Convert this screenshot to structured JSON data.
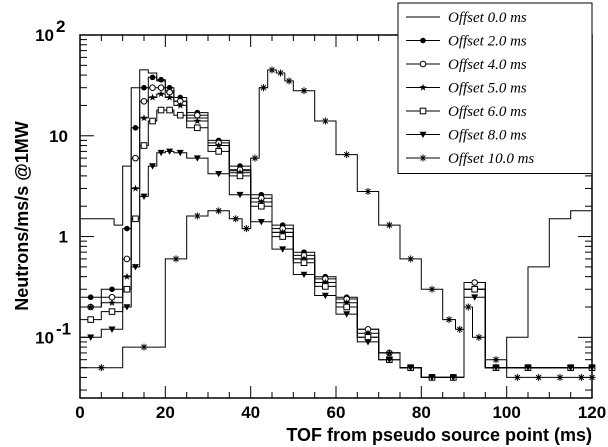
{
  "chart_data": {
    "type": "line",
    "xlabel": "TOF from pseudo source point (ms)",
    "ylabel": "Neutrons/ms/s @1MW",
    "xlim": [
      0,
      120
    ],
    "ylim": [
      0.025,
      100
    ],
    "yscale": "log",
    "x_ticks": [
      {
        "value": 0,
        "label": "0"
      },
      {
        "value": 20,
        "label": "20"
      },
      {
        "value": 40,
        "label": "40"
      },
      {
        "value": 60,
        "label": "60"
      },
      {
        "value": 80,
        "label": "80"
      },
      {
        "value": 100,
        "label": "100"
      },
      {
        "value": 120,
        "label": "120"
      }
    ],
    "y_ticks": [
      {
        "value": 0.1,
        "base": "10",
        "exp": "-1"
      },
      {
        "value": 1,
        "label": "1"
      },
      {
        "value": 10,
        "label": "10"
      },
      {
        "value": 100,
        "base": "10",
        "exp": "2"
      }
    ],
    "legend_position": "top-right",
    "series": [
      {
        "name": "Offset  0.0 ms",
        "marker": "none",
        "x": [
          0,
          8,
          10,
          12,
          14,
          16,
          18,
          20,
          22,
          25,
          30,
          35,
          40,
          45,
          50,
          55,
          60,
          65,
          70,
          75,
          80,
          85,
          90,
          95,
          100,
          105,
          110,
          115,
          120
        ],
        "y": [
          1.5,
          1.3,
          5,
          30,
          45,
          42,
          35,
          28,
          22,
          15,
          8,
          4.5,
          2.2,
          1.1,
          0.6,
          0.35,
          0.2,
          0.1,
          0.07,
          0.05,
          0.04,
          0.04,
          0.3,
          0.05,
          0.1,
          0.5,
          1.5,
          1.8,
          1.6
        ]
      },
      {
        "name": "Offset  2.0 ms",
        "marker": "dot",
        "x": [
          0,
          5,
          10,
          12,
          14,
          16,
          18,
          20,
          22,
          25,
          30,
          35,
          40,
          45,
          50,
          55,
          60,
          65,
          70,
          75,
          80,
          85,
          90,
          95,
          100,
          110,
          120
        ],
        "y": [
          0.25,
          0.3,
          1.2,
          12,
          30,
          38,
          36,
          30,
          24,
          17,
          9,
          5,
          2.6,
          1.3,
          0.7,
          0.4,
          0.25,
          0.12,
          0.07,
          0.05,
          0.04,
          0.04,
          0.35,
          0.05,
          0.05,
          0.05,
          0.05
        ]
      },
      {
        "name": "Offset  4.0 ms",
        "marker": "circle",
        "x": [
          0,
          5,
          10,
          12,
          14,
          16,
          18,
          20,
          22,
          25,
          30,
          35,
          40,
          45,
          50,
          55,
          60,
          65,
          70,
          75,
          80,
          85,
          90,
          95,
          100,
          110,
          120
        ],
        "y": [
          0.2,
          0.25,
          0.6,
          6,
          22,
          30,
          30,
          27,
          22,
          16,
          8.5,
          4.6,
          2.4,
          1.2,
          0.65,
          0.38,
          0.24,
          0.12,
          0.07,
          0.05,
          0.04,
          0.04,
          0.35,
          0.05,
          0.05,
          0.05,
          0.05
        ]
      },
      {
        "name": "Offset  5.0 ms",
        "marker": "star",
        "x": [
          0,
          5,
          10,
          12,
          14,
          16,
          18,
          20,
          22,
          25,
          30,
          35,
          40,
          45,
          50,
          55,
          60,
          65,
          70,
          75,
          80,
          85,
          90,
          95,
          100,
          110,
          120
        ],
        "y": [
          0.2,
          0.22,
          0.4,
          3,
          15,
          24,
          26,
          24,
          20,
          14,
          8,
          4.3,
          2.2,
          1.1,
          0.6,
          0.35,
          0.22,
          0.11,
          0.07,
          0.05,
          0.04,
          0.04,
          0.3,
          0.05,
          0.05,
          0.05,
          0.05
        ]
      },
      {
        "name": "Offset  6.0 ms",
        "marker": "square",
        "x": [
          0,
          5,
          10,
          12,
          14,
          16,
          18,
          20,
          22,
          25,
          30,
          35,
          40,
          45,
          50,
          55,
          60,
          65,
          70,
          75,
          80,
          85,
          90,
          95,
          100,
          110,
          120
        ],
        "y": [
          0.15,
          0.18,
          0.3,
          1.5,
          8,
          14,
          18,
          18,
          16,
          12,
          7,
          4,
          2,
          1,
          0.55,
          0.32,
          0.2,
          0.1,
          0.06,
          0.05,
          0.04,
          0.04,
          0.3,
          0.05,
          0.05,
          0.05,
          0.05
        ]
      },
      {
        "name": "Offset  8.0 ms",
        "marker": "triangle-down",
        "x": [
          0,
          5,
          10,
          12,
          14,
          16,
          18,
          20,
          22,
          25,
          30,
          35,
          40,
          45,
          50,
          55,
          60,
          65,
          70,
          75,
          80,
          85,
          90,
          95,
          100,
          110,
          120
        ],
        "y": [
          0.1,
          0.12,
          0.2,
          0.5,
          2.5,
          5,
          6.8,
          7,
          6.8,
          6,
          4.2,
          2.6,
          1.4,
          0.75,
          0.42,
          0.26,
          0.17,
          0.09,
          0.06,
          0.05,
          0.04,
          0.04,
          0.25,
          0.05,
          0.05,
          0.05,
          0.05
        ]
      },
      {
        "name": "Offset 10.0 ms",
        "marker": "asterisk",
        "x": [
          0,
          10,
          20,
          25,
          30,
          35,
          38,
          40,
          42,
          44,
          46,
          48,
          50,
          55,
          60,
          65,
          70,
          75,
          80,
          85,
          88,
          90,
          92,
          95,
          100,
          105,
          110,
          115,
          120
        ],
        "y": [
          0.05,
          0.08,
          0.6,
          1.6,
          1.8,
          1.5,
          1.2,
          6,
          30,
          45,
          42,
          35,
          28,
          14,
          6.5,
          2.8,
          1.3,
          0.6,
          0.3,
          0.15,
          0.12,
          0.2,
          0.1,
          0.06,
          0.04,
          0.04,
          0.04,
          0.04,
          0.04
        ]
      }
    ]
  }
}
